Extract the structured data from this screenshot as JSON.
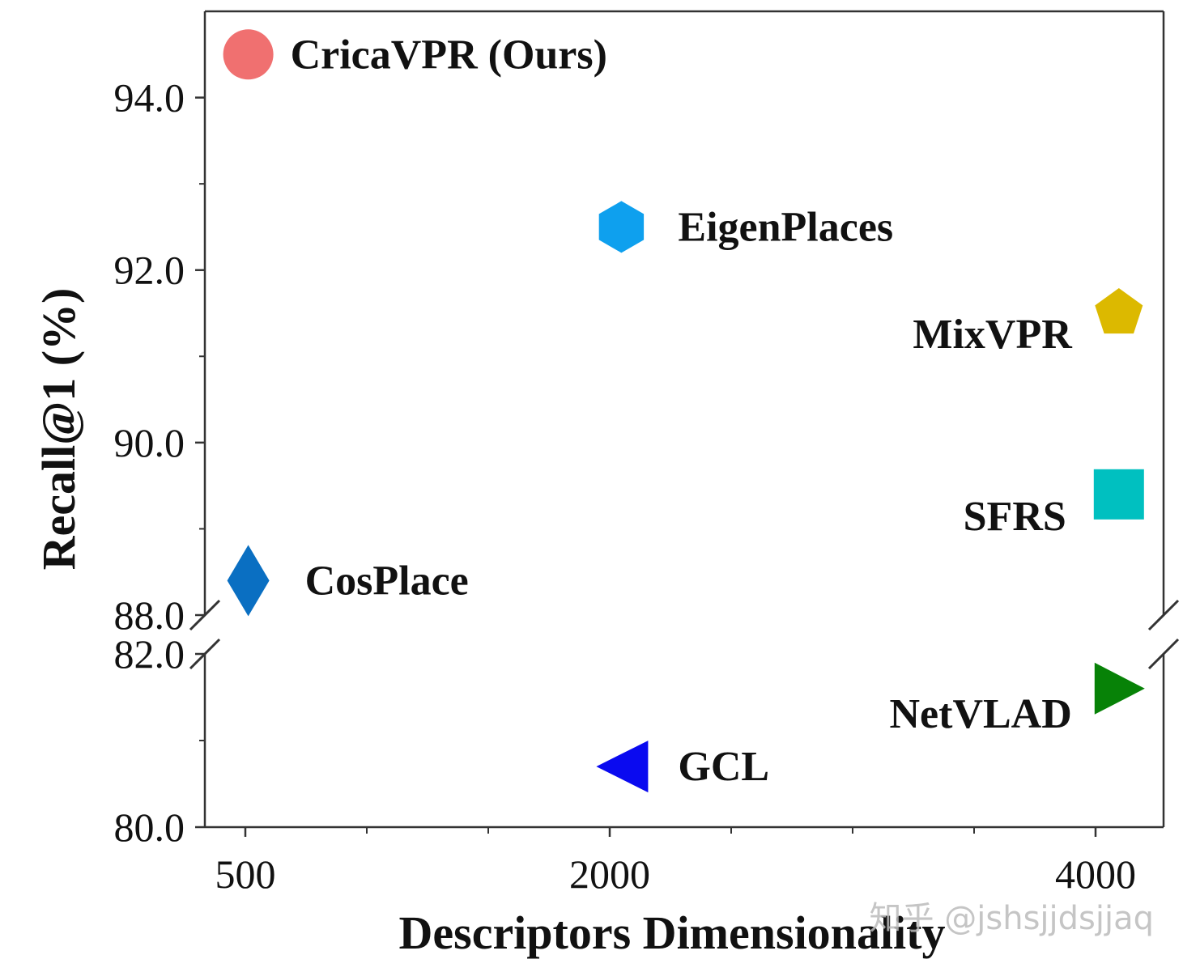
{
  "chart_data": {
    "type": "scatter",
    "xlabel": "Descriptors Dimensionality",
    "ylabel": "Recall@1 (%)",
    "xlim": [
      340,
      4280
    ],
    "x_ticks_major": [
      500,
      2000,
      4000
    ],
    "x_tick_labels": [
      "500",
      "2000",
      "4000"
    ],
    "x_ticks_minor": [
      1000,
      1500,
      2500,
      3000,
      3500
    ],
    "y_axis_broken": true,
    "ylim_upper": [
      88,
      95
    ],
    "ylim_lower": [
      80,
      82
    ],
    "y_ticks_major": [
      94,
      92,
      90,
      88,
      82,
      80
    ],
    "y_tick_labels": [
      "94.0",
      "92.0",
      "90.0",
      "88.0",
      "82.0",
      "80.0"
    ],
    "y_ticks_minor": [
      93,
      91,
      89,
      81
    ],
    "grid": false,
    "points": [
      {
        "label": "CricaVPR (Ours)",
        "x": 512,
        "y": 94.5,
        "marker": "circle",
        "color": "#f07070",
        "label_side": "right"
      },
      {
        "label": "EigenPlaces",
        "x": 2048,
        "y": 92.5,
        "marker": "hexagon",
        "color": "#0ea0ee",
        "label_side": "right"
      },
      {
        "label": "MixVPR",
        "x": 4096,
        "y": 91.5,
        "marker": "pentagon",
        "color": "#dcb900",
        "label_side": "left"
      },
      {
        "label": "SFRS",
        "x": 4096,
        "y": 89.4,
        "marker": "square",
        "color": "#00c0c0",
        "label_side": "left"
      },
      {
        "label": "CosPlace",
        "x": 512,
        "y": 88.4,
        "marker": "diamond",
        "color": "#0a6fc2",
        "label_side": "right"
      },
      {
        "label": "NetVLAD",
        "x": 4096,
        "y": 81.6,
        "marker": "triangle-right",
        "color": "#078207",
        "label_side": "left"
      },
      {
        "label": "GCL",
        "x": 2048,
        "y": 80.7,
        "marker": "triangle-left",
        "color": "#0a0af0",
        "label_side": "right"
      }
    ]
  },
  "watermark": "知乎 @jshsjjdsjjaq"
}
